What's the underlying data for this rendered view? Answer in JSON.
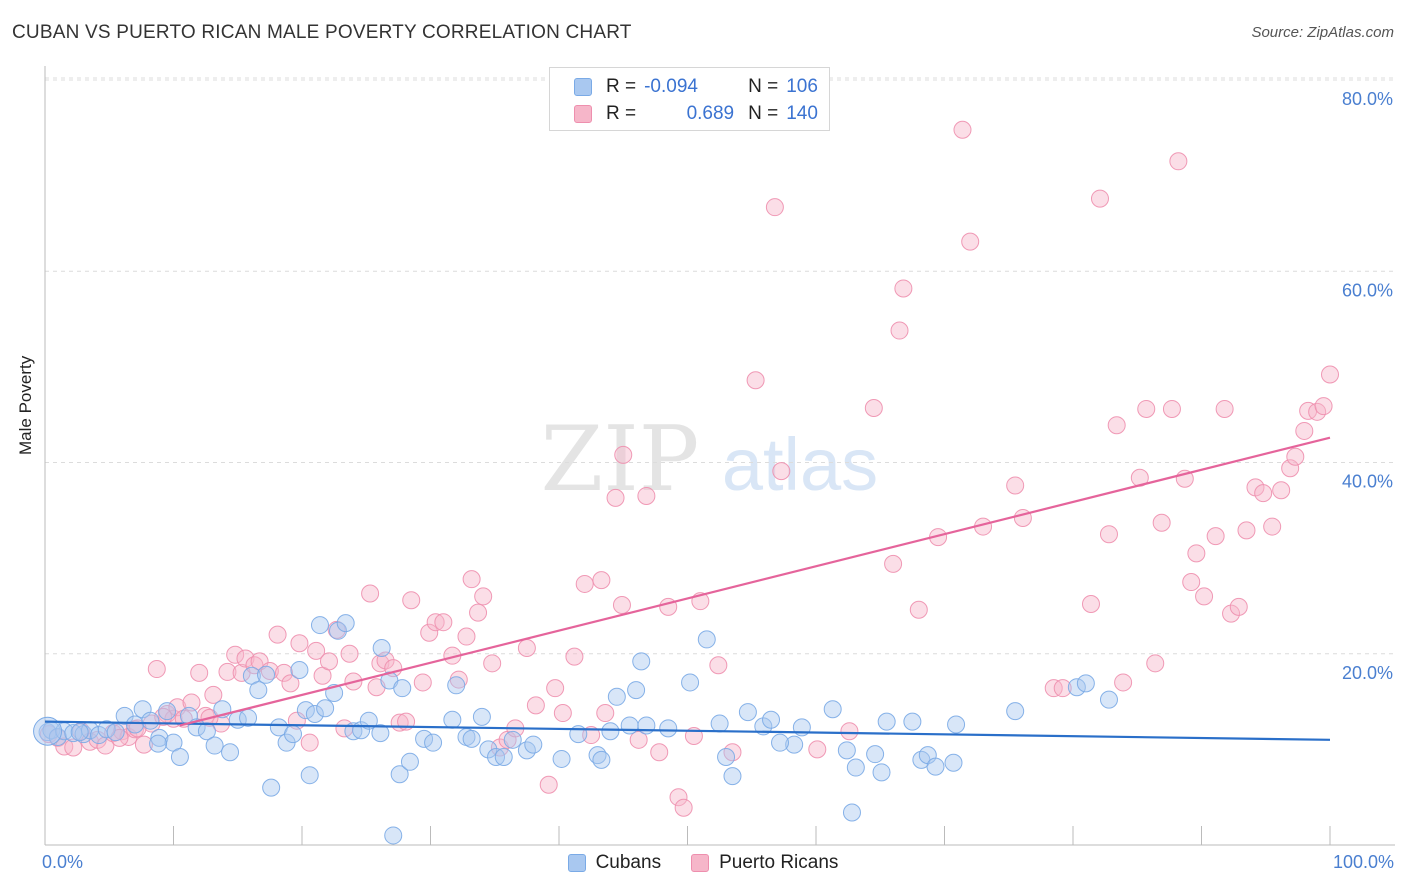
{
  "title": "CUBAN VS PUERTO RICAN MALE POVERTY CORRELATION CHART",
  "source": "Source: ZipAtlas.com",
  "watermark": {
    "zip": "ZIP",
    "atlas": "atlas"
  },
  "legend": {
    "rows": [
      {
        "r_label": "R =",
        "r_value": "-0.094",
        "n_label": "N =",
        "n_value": "106",
        "color": "#a9c8f0",
        "stroke": "#7aaae6"
      },
      {
        "r_label": "R =",
        "r_value": "0.689",
        "n_label": "N =",
        "n_value": "140",
        "color": "#f6b6c9",
        "stroke": "#ee8fae"
      }
    ]
  },
  "bottom_legend": [
    {
      "label": "Cubans",
      "color": "#a9c8f0",
      "stroke": "#7aaae6"
    },
    {
      "label": "Puerto Ricans",
      "color": "#f6b6c9",
      "stroke": "#ee8fae"
    }
  ],
  "chart_data": {
    "type": "scatter",
    "title": "CUBAN VS PUERTO RICAN MALE POVERTY CORRELATION CHART",
    "xlabel": "",
    "ylabel": "Male Poverty",
    "xlim": [
      0,
      100
    ],
    "ylim": [
      0,
      80
    ],
    "x_tick_labels": [
      "0.0%",
      "100.0%"
    ],
    "y_ticks": [
      20,
      40,
      60,
      80
    ],
    "y_tick_labels": [
      "20.0%",
      "40.0%",
      "60.0%",
      "80.0%"
    ],
    "grid": true,
    "legend_position": "top-center",
    "series": [
      {
        "name": "Cubans",
        "color": "#a9c8f0",
        "stroke": "#7aaae6",
        "line_color": "#2a6fc9",
        "trend": [
          [
            0,
            12.9
          ],
          [
            100,
            11.0
          ]
        ],
        "points": [
          [
            0.2,
            11.8
          ],
          [
            0.5,
            12.0
          ],
          [
            1.0,
            11.3
          ],
          [
            1.5,
            11.9
          ],
          [
            2.2,
            11.7
          ],
          [
            3.0,
            11.6
          ],
          [
            3.5,
            12.0
          ],
          [
            4.2,
            11.5
          ],
          [
            4.8,
            12.1
          ],
          [
            5.5,
            11.8
          ],
          [
            6.2,
            13.5
          ],
          [
            7.0,
            12.6
          ],
          [
            7.6,
            14.2
          ],
          [
            8.2,
            13.0
          ],
          [
            8.9,
            11.2
          ],
          [
            9.5,
            14.0
          ],
          [
            10.0,
            10.7
          ],
          [
            10.5,
            9.2
          ],
          [
            11.2,
            13.5
          ],
          [
            11.8,
            12.3
          ],
          [
            12.6,
            11.9
          ],
          [
            13.2,
            10.4
          ],
          [
            13.8,
            14.2
          ],
          [
            14.4,
            9.7
          ],
          [
            15.0,
            13.1
          ],
          [
            15.8,
            13.3
          ],
          [
            16.1,
            17.7
          ],
          [
            16.6,
            16.2
          ],
          [
            17.2,
            17.8
          ],
          [
            17.6,
            6.0
          ],
          [
            18.2,
            12.3
          ],
          [
            18.8,
            10.7
          ],
          [
            19.3,
            11.6
          ],
          [
            19.8,
            18.3
          ],
          [
            20.3,
            14.1
          ],
          [
            20.6,
            7.3
          ],
          [
            21.0,
            13.7
          ],
          [
            21.4,
            23.0
          ],
          [
            21.8,
            14.3
          ],
          [
            22.5,
            15.9
          ],
          [
            22.8,
            22.4
          ],
          [
            23.4,
            23.2
          ],
          [
            24.0,
            11.9
          ],
          [
            24.6,
            12.0
          ],
          [
            25.2,
            13.0
          ],
          [
            26.1,
            11.7
          ],
          [
            26.2,
            20.6
          ],
          [
            26.8,
            17.2
          ],
          [
            27.1,
            1.0
          ],
          [
            27.6,
            7.4
          ],
          [
            27.8,
            16.4
          ],
          [
            28.4,
            8.7
          ],
          [
            29.5,
            11.1
          ],
          [
            30.2,
            10.7
          ],
          [
            31.7,
            13.1
          ],
          [
            32.0,
            16.7
          ],
          [
            32.8,
            11.3
          ],
          [
            33.2,
            11.1
          ],
          [
            34.0,
            13.4
          ],
          [
            34.5,
            10.0
          ],
          [
            35.1,
            9.2
          ],
          [
            35.7,
            9.2
          ],
          [
            36.4,
            11.0
          ],
          [
            37.5,
            9.9
          ],
          [
            38.0,
            10.5
          ],
          [
            40.2,
            9.0
          ],
          [
            41.5,
            11.6
          ],
          [
            43.0,
            9.4
          ],
          [
            43.3,
            8.9
          ],
          [
            44.0,
            11.9
          ],
          [
            44.5,
            15.5
          ],
          [
            45.5,
            12.5
          ],
          [
            46.0,
            16.2
          ],
          [
            46.4,
            19.2
          ],
          [
            46.8,
            12.5
          ],
          [
            48.5,
            12.2
          ],
          [
            50.2,
            17.0
          ],
          [
            51.5,
            21.5
          ],
          [
            52.5,
            12.7
          ],
          [
            53.0,
            9.2
          ],
          [
            53.5,
            7.2
          ],
          [
            54.7,
            13.9
          ],
          [
            55.9,
            12.4
          ],
          [
            56.5,
            13.1
          ],
          [
            58.3,
            10.5
          ],
          [
            58.9,
            12.3
          ],
          [
            61.3,
            14.2
          ],
          [
            62.4,
            9.9
          ],
          [
            62.8,
            3.4
          ],
          [
            63.1,
            8.1
          ],
          [
            64.6,
            9.5
          ],
          [
            65.1,
            7.6
          ],
          [
            65.5,
            12.9
          ],
          [
            67.5,
            12.9
          ],
          [
            68.2,
            8.9
          ],
          [
            68.7,
            9.4
          ],
          [
            69.3,
            8.2
          ],
          [
            70.7,
            8.6
          ],
          [
            70.9,
            12.6
          ],
          [
            75.5,
            14.0
          ],
          [
            80.3,
            16.5
          ],
          [
            81.0,
            16.9
          ],
          [
            82.8,
            15.2
          ],
          [
            57.2,
            10.7
          ],
          [
            8.8,
            10.6
          ],
          [
            2.7,
            11.8
          ]
        ]
      },
      {
        "name": "Puerto Ricans",
        "color": "#f6b6c9",
        "stroke": "#ee8fae",
        "line_color": "#e5649b",
        "trend": [
          [
            10.5,
            12.5
          ],
          [
            100,
            42.6
          ]
        ],
        "points": [
          [
            0.3,
            11.6
          ],
          [
            1.0,
            11.2
          ],
          [
            1.5,
            10.3
          ],
          [
            2.2,
            10.2
          ],
          [
            2.8,
            11.9
          ],
          [
            3.5,
            10.8
          ],
          [
            4.1,
            11.0
          ],
          [
            4.7,
            10.4
          ],
          [
            5.3,
            11.7
          ],
          [
            6.0,
            11.9
          ],
          [
            6.5,
            11.3
          ],
          [
            7.0,
            12.1
          ],
          [
            7.7,
            10.5
          ],
          [
            8.3,
            12.7
          ],
          [
            8.7,
            18.4
          ],
          [
            9.5,
            13.7
          ],
          [
            10.0,
            13.2
          ],
          [
            10.3,
            14.4
          ],
          [
            10.8,
            13.2
          ],
          [
            11.4,
            14.9
          ],
          [
            12.0,
            18.0
          ],
          [
            12.5,
            13.5
          ],
          [
            13.1,
            15.7
          ],
          [
            13.7,
            12.7
          ],
          [
            14.2,
            18.1
          ],
          [
            14.8,
            19.9
          ],
          [
            15.3,
            18.0
          ],
          [
            15.6,
            19.5
          ],
          [
            16.3,
            18.8
          ],
          [
            16.7,
            19.2
          ],
          [
            17.5,
            18.2
          ],
          [
            18.1,
            22.0
          ],
          [
            18.6,
            18.0
          ],
          [
            19.1,
            16.9
          ],
          [
            19.6,
            13.0
          ],
          [
            19.8,
            21.1
          ],
          [
            20.6,
            10.7
          ],
          [
            21.1,
            20.3
          ],
          [
            21.6,
            17.7
          ],
          [
            22.1,
            19.2
          ],
          [
            22.7,
            22.5
          ],
          [
            23.3,
            12.2
          ],
          [
            23.7,
            20.0
          ],
          [
            24.0,
            17.1
          ],
          [
            25.3,
            26.3
          ],
          [
            25.8,
            16.5
          ],
          [
            26.1,
            19.0
          ],
          [
            26.5,
            19.3
          ],
          [
            27.1,
            18.5
          ],
          [
            27.6,
            12.8
          ],
          [
            28.1,
            12.9
          ],
          [
            28.5,
            25.6
          ],
          [
            29.4,
            17.0
          ],
          [
            29.9,
            22.2
          ],
          [
            30.4,
            23.3
          ],
          [
            31.0,
            23.3
          ],
          [
            31.7,
            19.8
          ],
          [
            32.2,
            17.3
          ],
          [
            32.8,
            21.8
          ],
          [
            33.2,
            27.8
          ],
          [
            33.7,
            24.3
          ],
          [
            34.1,
            26.0
          ],
          [
            34.8,
            19.0
          ],
          [
            35.4,
            10.2
          ],
          [
            36.0,
            11.0
          ],
          [
            36.6,
            12.2
          ],
          [
            37.5,
            20.6
          ],
          [
            38.2,
            14.6
          ],
          [
            39.2,
            6.3
          ],
          [
            39.7,
            16.4
          ],
          [
            40.3,
            13.8
          ],
          [
            41.2,
            19.7
          ],
          [
            42.0,
            27.3
          ],
          [
            42.5,
            11.5
          ],
          [
            43.3,
            27.7
          ],
          [
            43.6,
            13.8
          ],
          [
            44.4,
            36.3
          ],
          [
            44.9,
            25.1
          ],
          [
            45.0,
            40.8
          ],
          [
            46.2,
            11.0
          ],
          [
            46.8,
            36.5
          ],
          [
            47.8,
            9.7
          ],
          [
            48.5,
            24.9
          ],
          [
            49.3,
            5.0
          ],
          [
            49.7,
            3.9
          ],
          [
            50.5,
            11.4
          ],
          [
            51.0,
            25.5
          ],
          [
            52.4,
            18.8
          ],
          [
            53.5,
            9.7
          ],
          [
            55.3,
            48.6
          ],
          [
            56.8,
            66.7
          ],
          [
            57.3,
            39.1
          ],
          [
            60.1,
            10.0
          ],
          [
            62.6,
            11.9
          ],
          [
            64.5,
            45.7
          ],
          [
            66.0,
            29.4
          ],
          [
            66.5,
            53.8
          ],
          [
            66.8,
            58.2
          ],
          [
            68.0,
            24.6
          ],
          [
            69.5,
            32.2
          ],
          [
            71.4,
            74.8
          ],
          [
            72.0,
            63.1
          ],
          [
            73.0,
            33.3
          ],
          [
            75.5,
            37.6
          ],
          [
            76.1,
            34.2
          ],
          [
            78.5,
            16.4
          ],
          [
            79.2,
            16.4
          ],
          [
            81.4,
            25.2
          ],
          [
            82.1,
            67.6
          ],
          [
            82.8,
            32.5
          ],
          [
            83.4,
            43.9
          ],
          [
            83.9,
            17.0
          ],
          [
            85.2,
            38.4
          ],
          [
            85.7,
            45.6
          ],
          [
            86.4,
            19.0
          ],
          [
            86.9,
            33.7
          ],
          [
            87.7,
            45.6
          ],
          [
            88.2,
            71.5
          ],
          [
            88.7,
            38.3
          ],
          [
            89.2,
            27.5
          ],
          [
            89.6,
            30.5
          ],
          [
            90.2,
            26.0
          ],
          [
            91.1,
            32.3
          ],
          [
            91.8,
            45.6
          ],
          [
            92.3,
            24.2
          ],
          [
            92.9,
            24.9
          ],
          [
            93.5,
            32.9
          ],
          [
            94.2,
            37.4
          ],
          [
            94.8,
            36.8
          ],
          [
            95.5,
            33.3
          ],
          [
            96.2,
            37.1
          ],
          [
            96.9,
            39.4
          ],
          [
            97.3,
            40.6
          ],
          [
            98.0,
            43.3
          ],
          [
            98.3,
            45.4
          ],
          [
            99.0,
            45.3
          ],
          [
            99.5,
            45.9
          ],
          [
            100.0,
            49.2
          ],
          [
            12.8,
            13.3
          ],
          [
            5.8,
            11.2
          ],
          [
            7.2,
            12.2
          ],
          [
            9.2,
            13.4
          ]
        ]
      }
    ]
  }
}
